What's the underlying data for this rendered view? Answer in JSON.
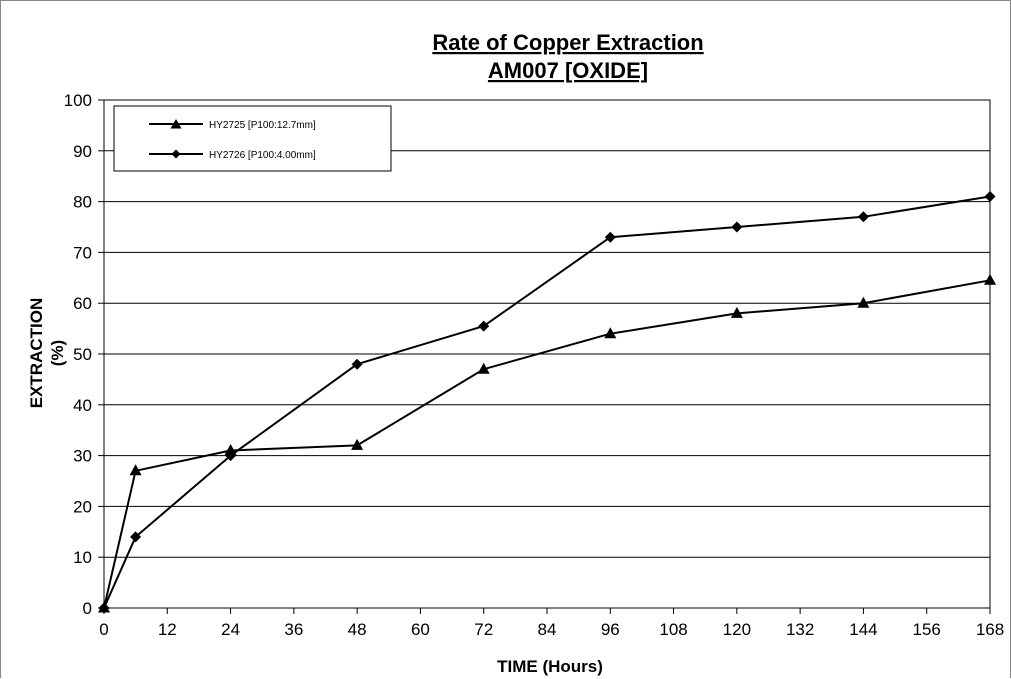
{
  "chart_data": {
    "type": "line",
    "title": "Rate of Copper Extraction",
    "subtitle": "AM007 [OXIDE]",
    "xlabel": "TIME (Hours)",
    "ylabel": "EXTRACTION",
    "ylabel_unit": "(%)",
    "xlim": [
      0,
      168
    ],
    "ylim": [
      0,
      100
    ],
    "xticks": [
      0,
      12,
      24,
      36,
      48,
      60,
      72,
      84,
      96,
      108,
      120,
      132,
      144,
      156,
      168
    ],
    "yticks": [
      0,
      10,
      20,
      30,
      40,
      50,
      60,
      70,
      80,
      90,
      100
    ],
    "grid": "horizontal",
    "legend_position": "top-left",
    "series": [
      {
        "name": "HY2725 [P100:12.7mm]",
        "marker": "triangle",
        "color": "#000000",
        "x": [
          0,
          6,
          24,
          48,
          72,
          96,
          120,
          144,
          168
        ],
        "y": [
          0,
          27,
          31,
          32,
          47,
          54,
          58,
          60,
          64.5
        ]
      },
      {
        "name": "HY2726 [P100:4.00mm]",
        "marker": "diamond",
        "color": "#000000",
        "x": [
          0,
          6,
          24,
          48,
          72,
          96,
          120,
          144,
          168
        ],
        "y": [
          0,
          14,
          30,
          48,
          55.5,
          73,
          75,
          77,
          81
        ]
      }
    ]
  }
}
